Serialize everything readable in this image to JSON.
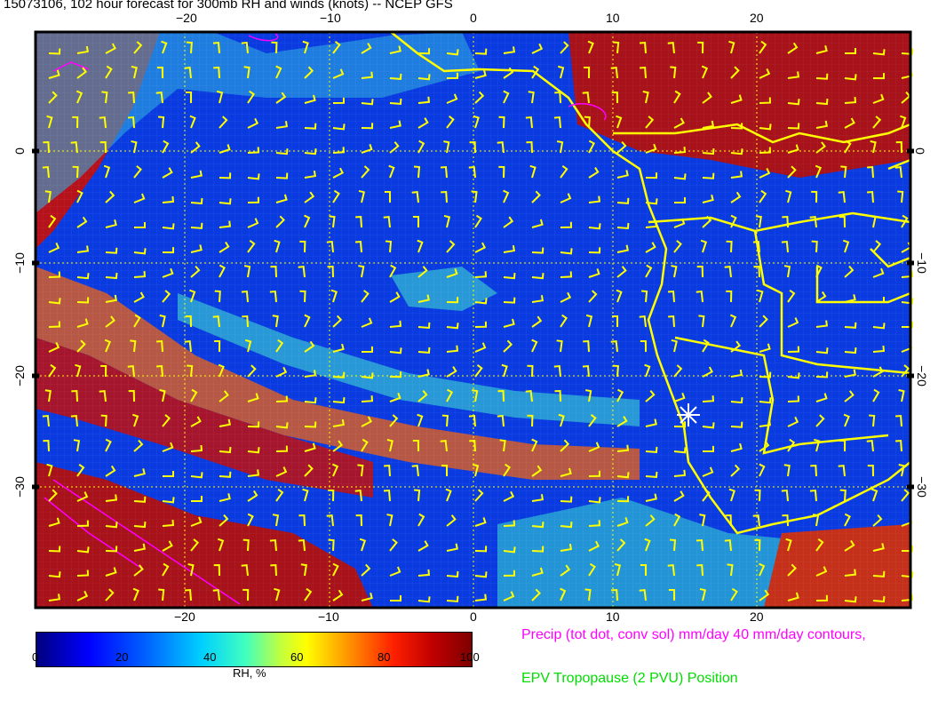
{
  "title": "15073106, 102 hour forecast for 300mb RH and winds (knots) -- NCEP GFS",
  "map": {
    "x_ticks": [
      "−20",
      "−10",
      "0",
      "10",
      "20"
    ],
    "y_ticks_left": [
      "0",
      "−10",
      "−20",
      "−30"
    ],
    "y_ticks_right": [
      "0",
      "−10",
      "−20",
      "−30"
    ],
    "colors": {
      "coastline": "#ffff00",
      "precip_contour": "#ff00ff",
      "wind_barb": "#ffff00",
      "marker": "#ffffff"
    },
    "marker_icon": "asterisk-marker"
  },
  "colorbar": {
    "ticks": [
      "0",
      "20",
      "40",
      "60",
      "80",
      "100"
    ],
    "label": "RH, %",
    "colormap": "jet"
  },
  "legend": {
    "precip": "Precip (tot dot, conv sol) mm/day 40 mm/day contours,",
    "tropopause": "EPV Tropopause (2 PVU) Position"
  }
}
